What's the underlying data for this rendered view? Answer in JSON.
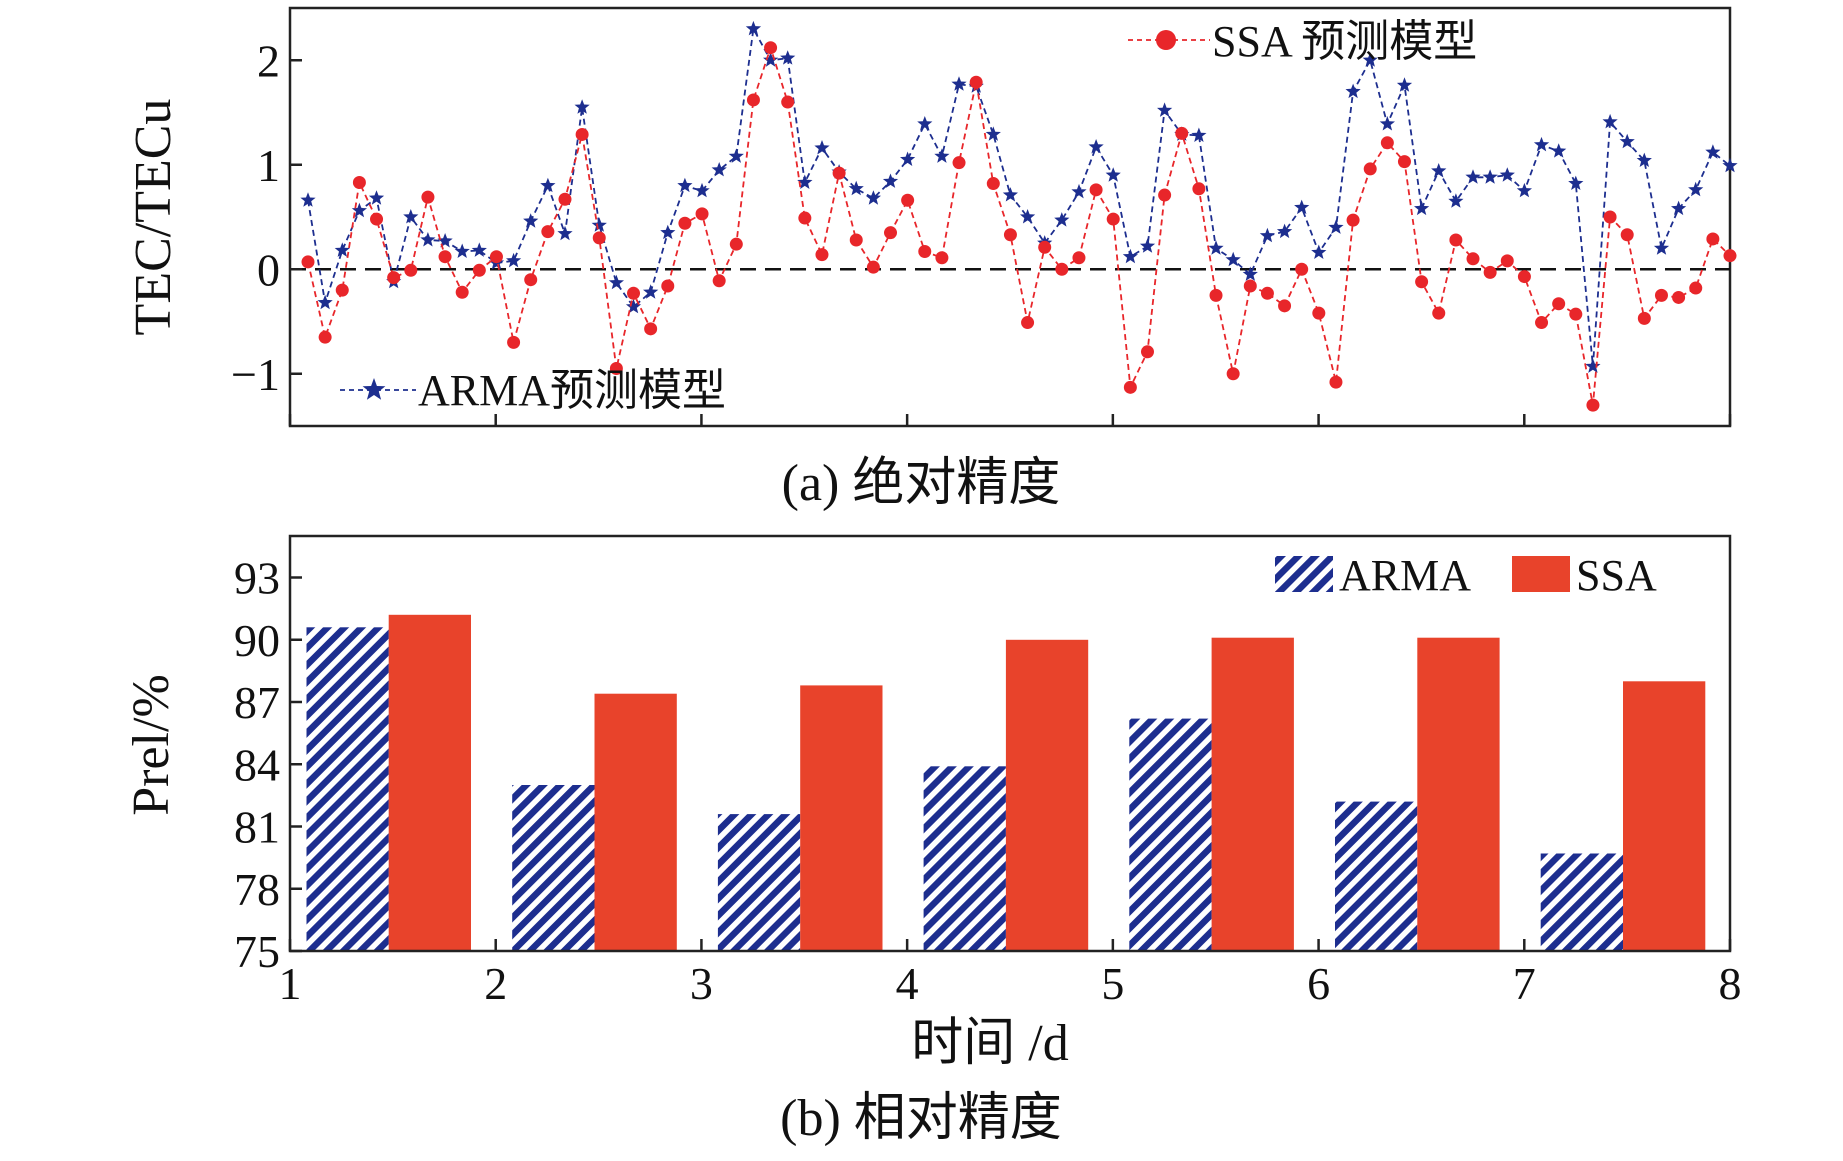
{
  "chart_data": [
    {
      "type": "line",
      "title": "",
      "caption": "(a) 绝对精度",
      "xlabel": "",
      "ylabel": "TEC/TECu",
      "ylim": [
        -1.5,
        2.5
      ],
      "yticks": [
        "2",
        "1",
        "0",
        "−1"
      ],
      "ytick_values": [
        2,
        1,
        0,
        -1
      ],
      "xlim": [
        0,
        70
      ],
      "reference_line": 0,
      "series": [
        {
          "name": "SSA 预测模型",
          "color": "#e8262a",
          "marker": "circle",
          "values": [
            0.07,
            -0.65,
            -0.2,
            0.83,
            0.48,
            -0.08,
            -0.01,
            0.69,
            0.12,
            -0.22,
            -0.01,
            0.12,
            -0.7,
            -0.1,
            0.36,
            0.67,
            1.29,
            0.3,
            -0.95,
            -0.23,
            -0.57,
            -0.16,
            0.44,
            0.53,
            -0.11,
            0.24,
            1.62,
            2.12,
            1.6,
            0.49,
            0.14,
            0.92,
            0.28,
            0.02,
            0.35,
            0.66,
            0.17,
            0.11,
            1.02,
            1.79,
            0.82,
            0.33,
            -0.51,
            0.21,
            0.0,
            0.11,
            0.76,
            0.48,
            -1.13,
            -0.79,
            0.71,
            1.3,
            0.77,
            -0.25,
            -1.0,
            -0.16,
            -0.23,
            -0.35,
            0.0,
            -0.42,
            -1.08,
            0.47,
            0.96,
            1.21,
            1.03,
            -0.12,
            -0.42,
            0.28,
            0.1,
            -0.03,
            0.08,
            -0.07,
            -0.51,
            -0.33,
            -0.43,
            -1.3,
            0.5,
            0.33,
            -0.47,
            -0.25,
            -0.27,
            -0.18,
            0.29,
            0.13
          ]
        },
        {
          "name": "ARMA预测模型",
          "color": "#1d2e8f",
          "marker": "star",
          "values": [
            0.66,
            -0.32,
            0.18,
            0.56,
            0.68,
            -0.12,
            0.5,
            0.28,
            0.27,
            0.17,
            0.18,
            0.06,
            0.08,
            0.46,
            0.8,
            0.34,
            1.55,
            0.42,
            -0.13,
            -0.36,
            -0.22,
            0.35,
            0.8,
            0.75,
            0.95,
            1.08,
            2.3,
            2.0,
            2.02,
            0.83,
            1.16,
            0.93,
            0.77,
            0.68,
            0.84,
            1.05,
            1.39,
            1.08,
            1.77,
            1.75,
            1.29,
            0.71,
            0.5,
            0.25,
            0.47,
            0.74,
            1.17,
            0.9,
            0.12,
            0.22,
            1.52,
            1.29,
            1.28,
            0.2,
            0.09,
            -0.05,
            0.32,
            0.36,
            0.59,
            0.16,
            0.4,
            1.7,
            2.0,
            1.39,
            1.76,
            0.58,
            0.94,
            0.65,
            0.88,
            0.88,
            0.9,
            0.75,
            1.19,
            1.13,
            0.82,
            -0.93,
            1.41,
            1.22,
            1.04,
            0.2,
            0.58,
            0.76,
            1.12,
            0.99
          ]
        }
      ]
    },
    {
      "type": "bar",
      "title": "",
      "caption": "(b) 相对精度",
      "xlabel": "时间 /d",
      "ylabel": "Prel/%",
      "ylim": [
        75,
        95
      ],
      "yticks": [
        "93",
        "90",
        "87",
        "84",
        "81",
        "78",
        "75"
      ],
      "ytick_values": [
        93,
        90,
        87,
        84,
        81,
        78,
        75
      ],
      "xlim": [
        1,
        8
      ],
      "xticks": [
        "1",
        "2",
        "3",
        "4",
        "5",
        "6",
        "7",
        "8"
      ],
      "categories": [
        "1",
        "2",
        "3",
        "4",
        "5",
        "6",
        "7"
      ],
      "series": [
        {
          "name": "ARMA",
          "color": "#1d2e8f",
          "pattern": "hatch",
          "values": [
            90.6,
            83.0,
            81.6,
            83.9,
            86.2,
            82.2,
            79.7
          ]
        },
        {
          "name": "SSA",
          "color": "#e8432b",
          "pattern": "solid",
          "values": [
            91.2,
            87.4,
            87.8,
            90.0,
            90.1,
            90.1,
            88.0
          ]
        }
      ]
    }
  ]
}
